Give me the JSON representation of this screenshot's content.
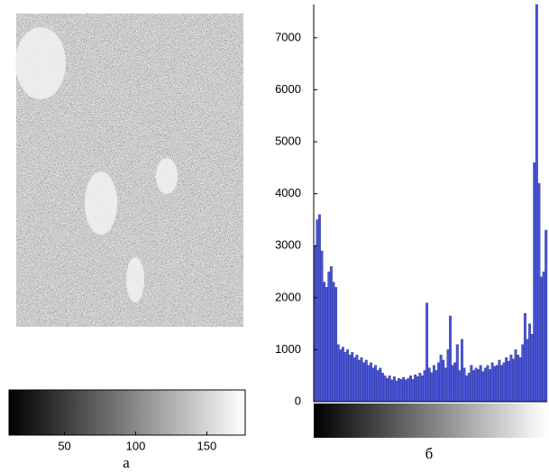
{
  "chart_data": [
    {
      "type": "image",
      "label": "а",
      "colorbar": {
        "clim": [
          11,
          177
        ],
        "ticks": [
          50,
          100,
          150
        ]
      }
    },
    {
      "type": "bar",
      "label": "б",
      "color": "#4a55d8",
      "values": [
        3000,
        3500,
        3600,
        2900,
        2300,
        2200,
        2500,
        2600,
        2300,
        2200,
        1100,
        1000,
        1050,
        950,
        1000,
        900,
        950,
        850,
        900,
        800,
        850,
        750,
        800,
        700,
        750,
        650,
        700,
        600,
        650,
        550,
        500,
        450,
        500,
        420,
        480,
        400,
        450,
        430,
        470,
        420,
        450,
        500,
        430,
        520,
        480,
        550,
        500,
        600,
        1900,
        650,
        560,
        700,
        600,
        750,
        900,
        800,
        650,
        1000,
        1650,
        700,
        750,
        1100,
        600,
        1200,
        650,
        500,
        550,
        700,
        600,
        650,
        620,
        700,
        580,
        650,
        700,
        620,
        750,
        680,
        700,
        800,
        700,
        750,
        850,
        780,
        900,
        820,
        1000,
        900,
        850,
        1100,
        1700,
        1200,
        1500,
        1300,
        4600,
        7640,
        4200,
        2400,
        2500,
        3300
      ],
      "ylim": [
        0,
        7640
      ],
      "yticks": [
        0,
        1000,
        2000,
        3000,
        4000,
        5000,
        6000,
        7000
      ]
    }
  ]
}
